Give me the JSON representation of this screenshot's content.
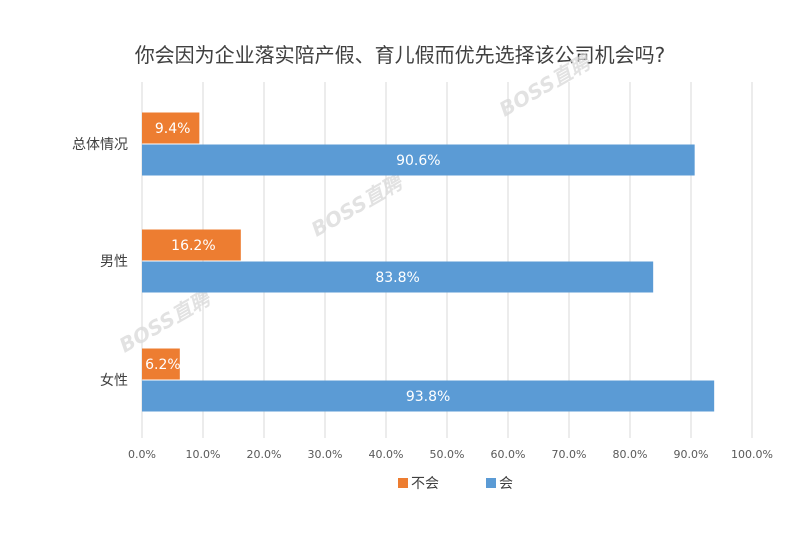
{
  "colors": {
    "no": "#ed7d31",
    "yes": "#5b9bd5",
    "grid": "#d9d9d9",
    "text": "#404040"
  },
  "chart_data": {
    "type": "bar",
    "orientation": "horizontal",
    "title": "你会因为企业落实陪产假、育儿假而优先选择该公司机会吗?",
    "categories": [
      "总体情况",
      "男性",
      "女性"
    ],
    "series": [
      {
        "name": "不会",
        "values": [
          9.4,
          16.2,
          6.2
        ],
        "labels": [
          "9.4%",
          "16.2%",
          "6.2%"
        ]
      },
      {
        "name": "会",
        "values": [
          90.6,
          83.8,
          93.8
        ],
        "labels": [
          "90.6%",
          "83.8%",
          "93.8%"
        ]
      }
    ],
    "xlim": [
      0,
      100
    ],
    "x_ticks": [
      0,
      10,
      20,
      30,
      40,
      50,
      60,
      70,
      80,
      90,
      100
    ],
    "x_tick_labels": [
      "0.0%",
      "10.0%",
      "20.0%",
      "30.0%",
      "40.0%",
      "50.0%",
      "60.0%",
      "70.0%",
      "80.0%",
      "90.0%",
      "100.0%"
    ],
    "grid": true,
    "legend": "bottom",
    "watermarks": [
      "BOSS直聘",
      "BOSS直聘",
      "BOSS直聘"
    ]
  }
}
